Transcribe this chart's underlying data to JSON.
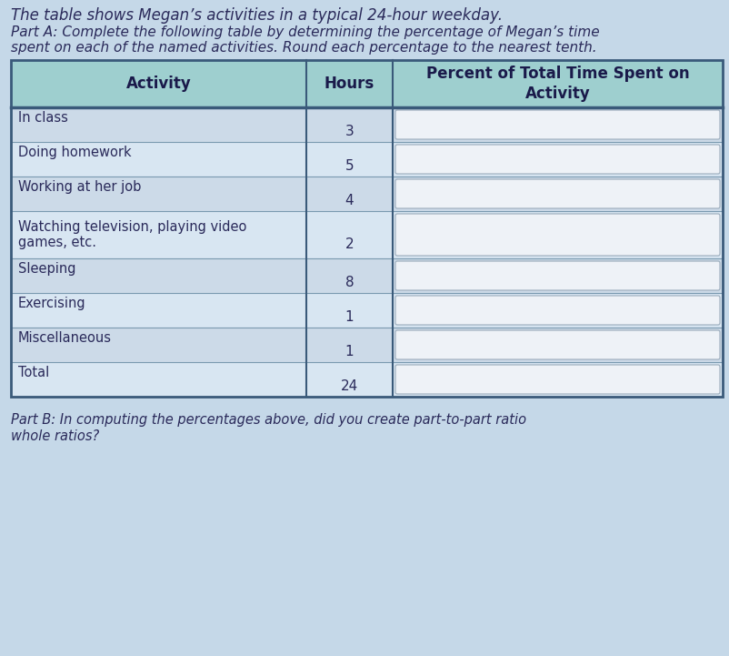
{
  "title_line1": "The table shows Megan’s activities in a typical 24-hour weekday.",
  "title_line2a": "Part A: Complete the following table by determining the percentage of Megan’s time",
  "title_line2b": "spent on each of the named activities. Round each percentage to the nearest tenth.",
  "col_header1": "Activity",
  "col_header2": "Hours",
  "col_header3": "Percent of Total Time Spent on\nActivity",
  "activities": [
    "In class",
    "Doing homework",
    "Working at her job",
    "Watching television, playing video\ngames, etc.",
    "Sleeping",
    "Exercising",
    "Miscellaneous",
    "Total"
  ],
  "hours": [
    "3",
    "5",
    "4",
    "2",
    "8",
    "1",
    "1",
    "24"
  ],
  "page_bg": "#c5d8e8",
  "table_bg": "#d4e4f0",
  "header_bg": "#9ecfcf",
  "row_even_bg": "#ccdae8",
  "row_odd_bg": "#d8e6f2",
  "input_box_color": "#eef2f7",
  "input_box_edge": "#9aabbb",
  "border_dark": "#3a5a7a",
  "border_light": "#7a9ab0",
  "text_color": "#2a2a5a",
  "header_text_color": "#1a1a4a",
  "part_b_text1": "Part B: In computing the percentages above, did you create part-to-part ratio",
  "part_b_text2": "whole ratios?"
}
